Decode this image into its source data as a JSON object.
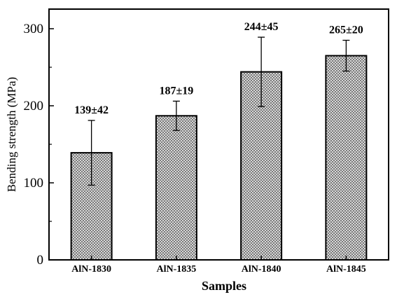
{
  "chart_data": {
    "type": "bar",
    "xlabel": "Samples",
    "ylabel": "Bending strength (MPa)",
    "ylim": [
      0,
      300
    ],
    "yticks": [
      0,
      100,
      200,
      300
    ],
    "categories": [
      "AlN-1830",
      "AlN-1835",
      "AlN-1840",
      "AlN-1845"
    ],
    "values": [
      139,
      187,
      244,
      265
    ],
    "errors": [
      42,
      19,
      45,
      20
    ],
    "data_labels": [
      "139±42",
      "187±19",
      "244±45",
      "265±20"
    ],
    "bar_fill": "crosshatch gray",
    "grid": false
  }
}
